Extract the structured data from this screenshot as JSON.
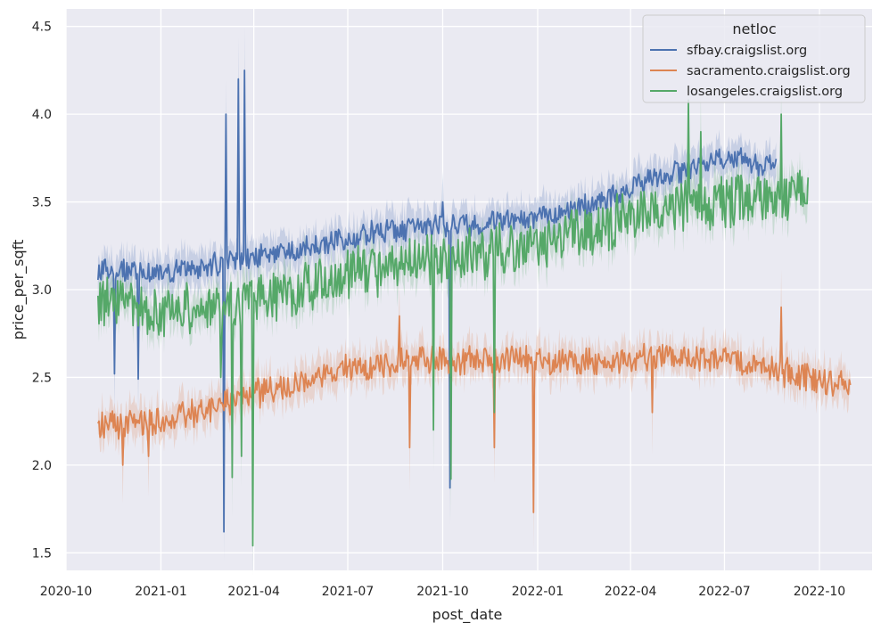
{
  "chart_data": {
    "type": "line",
    "title": "",
    "xlabel": "post_date",
    "ylabel": "price_per_sqft",
    "xlim": [
      "2020-10-01",
      "2022-11-21"
    ],
    "ylim": [
      1.4,
      4.6
    ],
    "x_ticks": [
      "2020-10",
      "2021-01",
      "2021-04",
      "2021-07",
      "2021-10",
      "2022-01",
      "2022-04",
      "2022-07",
      "2022-10"
    ],
    "y_ticks": [
      "1.5",
      "2.0",
      "2.5",
      "3.0",
      "3.5",
      "4.0",
      "4.5"
    ],
    "grid": true,
    "legend": {
      "title": "netloc",
      "placement": "top-right"
    },
    "series": [
      {
        "name": "sfbay.craigslist.org",
        "color": "#4c72b0",
        "start": "2020-11-01",
        "end": "2022-08-20",
        "trend": [
          [
            "2020-11-01",
            3.1
          ],
          [
            "2021-01-01",
            3.1
          ],
          [
            "2021-03-01",
            3.15
          ],
          [
            "2021-05-01",
            3.22
          ],
          [
            "2021-07-01",
            3.3
          ],
          [
            "2021-09-01",
            3.35
          ],
          [
            "2021-11-01",
            3.38
          ],
          [
            "2022-01-01",
            3.4
          ],
          [
            "2022-03-01",
            3.5
          ],
          [
            "2022-05-01",
            3.65
          ],
          [
            "2022-07-01",
            3.75
          ],
          [
            "2022-08-20",
            3.7
          ]
        ],
        "noise": 0.06,
        "spikes": [
          [
            "2020-11-17",
            2.52
          ],
          [
            "2020-12-10",
            2.49
          ],
          [
            "2021-03-03",
            1.62
          ],
          [
            "2021-03-05",
            4.0
          ],
          [
            "2021-03-17",
            4.2
          ],
          [
            "2021-03-23",
            4.25
          ],
          [
            "2021-10-08",
            1.87
          ],
          [
            "2021-10-01",
            3.5
          ]
        ]
      },
      {
        "name": "sacramento.craigslist.org",
        "color": "#dd8452",
        "start": "2020-11-01",
        "end": "2022-10-31",
        "trend": [
          [
            "2020-11-01",
            2.22
          ],
          [
            "2021-01-01",
            2.25
          ],
          [
            "2021-03-01",
            2.35
          ],
          [
            "2021-05-01",
            2.45
          ],
          [
            "2021-07-01",
            2.55
          ],
          [
            "2021-09-01",
            2.6
          ],
          [
            "2021-11-01",
            2.6
          ],
          [
            "2022-01-01",
            2.6
          ],
          [
            "2022-03-01",
            2.58
          ],
          [
            "2022-05-01",
            2.62
          ],
          [
            "2022-07-01",
            2.6
          ],
          [
            "2022-09-01",
            2.52
          ],
          [
            "2022-10-31",
            2.45
          ]
        ],
        "noise": 0.07,
        "spikes": [
          [
            "2020-11-25",
            2.0
          ],
          [
            "2020-12-20",
            2.05
          ],
          [
            "2021-08-30",
            2.1
          ],
          [
            "2021-11-20",
            2.1
          ],
          [
            "2021-12-28",
            1.73
          ],
          [
            "2022-04-22",
            2.3
          ],
          [
            "2022-08-25",
            2.9
          ],
          [
            "2021-08-20",
            2.85
          ]
        ]
      },
      {
        "name": "losangeles.craigslist.org",
        "color": "#55a868",
        "start": "2020-11-01",
        "end": "2022-09-20",
        "trend": [
          [
            "2020-11-01",
            2.92
          ],
          [
            "2021-01-01",
            2.88
          ],
          [
            "2021-03-01",
            2.9
          ],
          [
            "2021-05-01",
            2.98
          ],
          [
            "2021-07-01",
            3.08
          ],
          [
            "2021-09-01",
            3.15
          ],
          [
            "2021-11-01",
            3.2
          ],
          [
            "2022-01-01",
            3.25
          ],
          [
            "2022-03-01",
            3.35
          ],
          [
            "2022-05-01",
            3.45
          ],
          [
            "2022-07-01",
            3.5
          ],
          [
            "2022-09-20",
            3.55
          ]
        ],
        "noise": 0.13,
        "spikes": [
          [
            "2021-02-28",
            2.5
          ],
          [
            "2021-03-11",
            1.93
          ],
          [
            "2021-03-20",
            2.05
          ],
          [
            "2021-03-31",
            1.54
          ],
          [
            "2021-09-22",
            2.2
          ],
          [
            "2021-10-09",
            1.92
          ],
          [
            "2021-11-20",
            2.3
          ],
          [
            "2022-05-27",
            4.08
          ],
          [
            "2022-06-08",
            3.9
          ],
          [
            "2022-08-25",
            4.0
          ],
          [
            "2021-05-20",
            3.1
          ]
        ]
      }
    ]
  }
}
